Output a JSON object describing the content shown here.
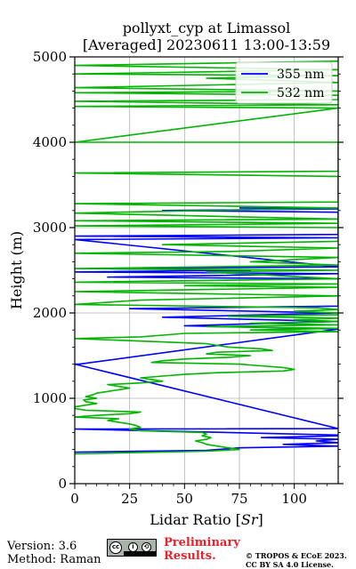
{
  "chart_data": {
    "type": "line",
    "title": "pollyxt_cyp at Limassol",
    "subtitle": "[Averaged] 20230611 13:00-13:59",
    "xlabel": "Lidar Ratio [",
    "xlabel_italic": "Sr",
    "xlabel_end": "]",
    "ylabel": "Height (m)",
    "xlim": [
      0,
      120
    ],
    "ylim": [
      0,
      5000
    ],
    "xticks": [
      0,
      25,
      50,
      75,
      100
    ],
    "yticks": [
      0,
      1000,
      2000,
      3000,
      4000,
      5000
    ],
    "x_tick_labels": [
      "0",
      "25",
      "50",
      "75",
      "100"
    ],
    "y_tick_labels": [
      "0",
      "1000",
      "2000",
      "3000",
      "4000",
      "5000"
    ],
    "grid": true,
    "legend_position": "top-right",
    "series": [
      {
        "name": "355 nm",
        "color": "#0000ff",
        "points": [
          [
            0,
            370
          ],
          [
            60,
            390
          ],
          [
            75,
            420
          ],
          [
            120,
            440
          ],
          [
            95,
            460
          ],
          [
            120,
            480
          ],
          [
            110,
            500
          ],
          [
            120,
            520
          ],
          [
            85,
            540
          ],
          [
            120,
            560
          ],
          [
            120,
            570
          ],
          [
            0,
            640
          ],
          [
            120,
            645
          ],
          [
            0,
            1400
          ],
          [
            2,
            1400
          ],
          [
            120,
            1810
          ],
          [
            50,
            1850
          ],
          [
            120,
            1900
          ],
          [
            40,
            1950
          ],
          [
            120,
            2000
          ],
          [
            25,
            2050
          ],
          [
            120,
            2080
          ],
          [
            120,
            2400
          ],
          [
            15,
            2420
          ],
          [
            120,
            2460
          ],
          [
            0,
            2480
          ],
          [
            80,
            2500
          ],
          [
            10,
            2520
          ],
          [
            120,
            2540
          ],
          [
            0,
            2860
          ],
          [
            120,
            2880
          ],
          [
            0,
            2900
          ],
          [
            120,
            2920
          ],
          [
            120,
            3180
          ],
          [
            40,
            3200
          ],
          [
            120,
            3220
          ],
          [
            75,
            3230
          ]
        ]
      },
      {
        "name": "532 nm",
        "color": "#00b400",
        "points": [
          [
            0,
            350
          ],
          [
            60,
            380
          ],
          [
            75,
            400
          ],
          [
            70,
            420
          ],
          [
            65,
            440
          ],
          [
            60,
            460
          ],
          [
            58,
            480
          ],
          [
            55,
            500
          ],
          [
            60,
            520
          ],
          [
            62,
            540
          ],
          [
            58,
            560
          ],
          [
            60,
            580
          ],
          [
            58,
            600
          ],
          [
            30,
            620
          ],
          [
            25,
            640
          ],
          [
            30,
            660
          ],
          [
            28,
            680
          ],
          [
            25,
            700
          ],
          [
            20,
            720
          ],
          [
            15,
            740
          ],
          [
            20,
            760
          ],
          [
            0,
            780
          ],
          [
            10,
            800
          ],
          [
            25,
            820
          ],
          [
            30,
            840
          ],
          [
            5,
            860
          ],
          [
            0,
            880
          ],
          [
            0,
            900
          ],
          [
            5,
            920
          ],
          [
            10,
            940
          ],
          [
            5,
            960
          ],
          [
            4,
            980
          ],
          [
            10,
            1000
          ],
          [
            5,
            1020
          ],
          [
            8,
            1040
          ],
          [
            10,
            1060
          ],
          [
            15,
            1080
          ],
          [
            20,
            1100
          ],
          [
            25,
            1120
          ],
          [
            20,
            1140
          ],
          [
            15,
            1160
          ],
          [
            30,
            1180
          ],
          [
            40,
            1200
          ],
          [
            35,
            1220
          ],
          [
            30,
            1240
          ],
          [
            40,
            1260
          ],
          [
            50,
            1280
          ],
          [
            65,
            1300
          ],
          [
            95,
            1320
          ],
          [
            100,
            1340
          ],
          [
            95,
            1360
          ],
          [
            85,
            1380
          ],
          [
            75,
            1400
          ],
          [
            35,
            1420
          ],
          [
            40,
            1440
          ],
          [
            50,
            1460
          ],
          [
            70,
            1480
          ],
          [
            80,
            1500
          ],
          [
            60,
            1520
          ],
          [
            65,
            1540
          ],
          [
            90,
            1560
          ],
          [
            85,
            1580
          ],
          [
            70,
            1600
          ],
          [
            65,
            1620
          ],
          [
            60,
            1640
          ],
          [
            40,
            1660
          ],
          [
            20,
            1680
          ],
          [
            0,
            1700
          ],
          [
            30,
            1720
          ],
          [
            40,
            1740
          ],
          [
            50,
            1760
          ],
          [
            120,
            1780
          ],
          [
            80,
            1800
          ],
          [
            120,
            1820
          ],
          [
            60,
            1840
          ],
          [
            120,
            1860
          ],
          [
            80,
            1880
          ],
          [
            120,
            1900
          ],
          [
            100,
            1920
          ],
          [
            120,
            1940
          ],
          [
            70,
            1960
          ],
          [
            120,
            1980
          ],
          [
            120,
            2000
          ],
          [
            100,
            2020
          ],
          [
            120,
            2040
          ],
          [
            110,
            2060
          ],
          [
            0,
            2100
          ],
          [
            30,
            2150
          ],
          [
            120,
            2200
          ],
          [
            0,
            2250
          ],
          [
            120,
            2300
          ],
          [
            50,
            2320
          ],
          [
            120,
            2340
          ],
          [
            0,
            2360
          ],
          [
            120,
            2400
          ],
          [
            60,
            2480
          ],
          [
            120,
            2500
          ],
          [
            0,
            2520
          ],
          [
            120,
            2560
          ],
          [
            80,
            2600
          ],
          [
            120,
            2650
          ],
          [
            0,
            2700
          ],
          [
            70,
            2720
          ],
          [
            120,
            2760
          ],
          [
            40,
            2800
          ],
          [
            120,
            2840
          ],
          [
            120,
            2900
          ],
          [
            120,
            3000
          ],
          [
            0,
            3020
          ],
          [
            120,
            3050
          ],
          [
            0,
            3080
          ],
          [
            120,
            3100
          ],
          [
            0,
            3170
          ],
          [
            120,
            3230
          ],
          [
            0,
            3280
          ],
          [
            120,
            3300
          ],
          [
            120,
            3600
          ],
          [
            0,
            3640
          ],
          [
            120,
            3660
          ],
          [
            120,
            4000
          ],
          [
            0,
            4000
          ],
          [
            120,
            4400
          ],
          [
            0,
            4420
          ],
          [
            120,
            4440
          ],
          [
            0,
            4480
          ],
          [
            120,
            4500
          ],
          [
            120,
            4550
          ],
          [
            0,
            4580
          ],
          [
            120,
            4600
          ],
          [
            0,
            4640
          ],
          [
            120,
            4700
          ],
          [
            60,
            4750
          ],
          [
            120,
            4780
          ],
          [
            0,
            4800
          ],
          [
            120,
            4850
          ],
          [
            0,
            4900
          ],
          [
            120,
            4950
          ]
        ]
      }
    ]
  },
  "footer": {
    "version": "Version: 3.6",
    "method": "Method: Raman",
    "preliminary_line1": "Preliminary",
    "preliminary_line2": "Results.",
    "copyright_line1": "© TROPOS & ECoE 2023.",
    "copyright_line2": "CC BY SA 4.0 License.",
    "license_badge_cc": "cc",
    "license_badge_by": "i",
    "license_badge_sa": "⟲"
  }
}
